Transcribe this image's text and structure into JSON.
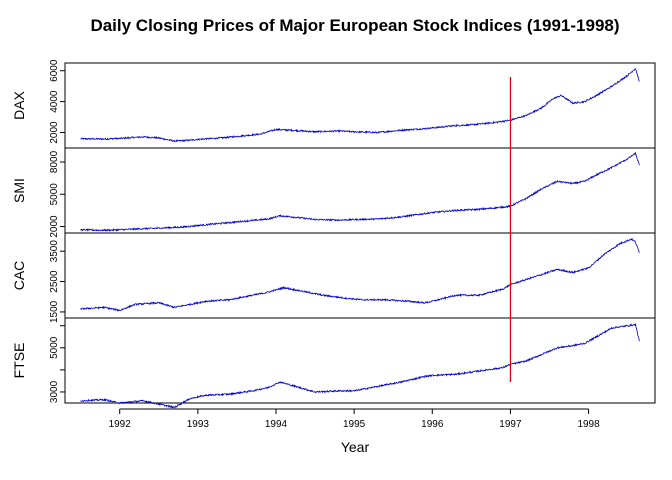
{
  "chart_data": {
    "type": "line",
    "title": "Daily Closing Prices of Major European Stock Indices (1991-1998)",
    "xlabel": "Year",
    "x_ticks": [
      1992,
      1993,
      1994,
      1995,
      1996,
      1997,
      1998
    ],
    "xlim": [
      1991.3,
      1998.85
    ],
    "series_color": "#0000cc",
    "vline": {
      "x": 1997.0,
      "color": "#dd0000"
    },
    "panels": [
      {
        "name": "DAX",
        "ylim": [
          1000,
          6500
        ],
        "yticks": [
          2000,
          4000,
          6000
        ],
        "ytick_labels": [
          "2000",
          "4000",
          "6000"
        ],
        "x": [
          1991.5,
          1991.8,
          1992.0,
          1992.3,
          1992.5,
          1992.7,
          1992.9,
          1993.0,
          1993.3,
          1993.5,
          1993.8,
          1994.0,
          1994.2,
          1994.5,
          1994.8,
          1995.0,
          1995.3,
          1995.6,
          1995.9,
          1996.0,
          1996.3,
          1996.5,
          1996.8,
          1997.0,
          1997.2,
          1997.4,
          1997.55,
          1997.65,
          1997.8,
          1997.95,
          1998.1,
          1998.3,
          1998.5,
          1998.6,
          1998.65
        ],
        "values": [
          1600,
          1580,
          1620,
          1720,
          1650,
          1450,
          1500,
          1560,
          1650,
          1750,
          1900,
          2200,
          2150,
          2050,
          2100,
          2050,
          2000,
          2150,
          2250,
          2300,
          2450,
          2500,
          2650,
          2800,
          3100,
          3600,
          4200,
          4400,
          3900,
          4000,
          4400,
          5000,
          5700,
          6150,
          5300
        ]
      },
      {
        "name": "SMI",
        "ylim": [
          1400,
          9300
        ],
        "yticks": [
          2000,
          5000,
          8000
        ],
        "ytick_labels": [
          "2000",
          "5000",
          "8000"
        ],
        "x": [
          1991.5,
          1991.8,
          1992.0,
          1992.3,
          1992.5,
          1992.8,
          1993.0,
          1993.3,
          1993.6,
          1993.9,
          1994.05,
          1994.2,
          1994.5,
          1994.8,
          1995.0,
          1995.3,
          1995.6,
          1995.9,
          1996.0,
          1996.3,
          1996.6,
          1996.9,
          1997.0,
          1997.2,
          1997.4,
          1997.6,
          1997.8,
          1997.95,
          1998.1,
          1998.3,
          1998.5,
          1998.6,
          1998.65
        ],
        "values": [
          1700,
          1650,
          1700,
          1800,
          1850,
          1950,
          2100,
          2300,
          2500,
          2700,
          3000,
          2900,
          2650,
          2600,
          2650,
          2700,
          2900,
          3200,
          3300,
          3500,
          3600,
          3800,
          3900,
          4600,
          5500,
          6200,
          6000,
          6200,
          6800,
          7500,
          8300,
          8800,
          7700
        ]
      },
      {
        "name": "CAC",
        "ylim": [
          1300,
          4100
        ],
        "yticks": [
          1500,
          2500,
          3500
        ],
        "ytick_labels": [
          "1500",
          "2500",
          "3500"
        ],
        "x": [
          1991.5,
          1991.8,
          1992.0,
          1992.2,
          1992.5,
          1992.7,
          1992.9,
          1993.1,
          1993.4,
          1993.7,
          1993.9,
          1994.1,
          1994.3,
          1994.6,
          1994.9,
          1995.1,
          1995.4,
          1995.7,
          1995.9,
          1996.0,
          1996.3,
          1996.6,
          1996.9,
          1997.0,
          1997.3,
          1997.6,
          1997.8,
          1998.0,
          1998.2,
          1998.4,
          1998.55,
          1998.6,
          1998.65
        ],
        "values": [
          1600,
          1650,
          1550,
          1750,
          1800,
          1650,
          1750,
          1850,
          1900,
          2050,
          2150,
          2300,
          2200,
          2050,
          1950,
          1900,
          1900,
          1850,
          1800,
          1850,
          2050,
          2050,
          2250,
          2400,
          2650,
          2900,
          2800,
          2950,
          3400,
          3750,
          3900,
          3800,
          3450
        ]
      },
      {
        "name": "FTSE",
        "ylim": [
          2500,
          6350
        ],
        "yticks": [
          3000,
          4000,
          5000,
          6000
        ],
        "ytick_labels": [
          "3000",
          "",
          "5000",
          ""
        ],
        "x": [
          1991.5,
          1991.8,
          1992.0,
          1992.3,
          1992.5,
          1992.7,
          1992.9,
          1993.1,
          1993.4,
          1993.7,
          1993.9,
          1994.05,
          1994.2,
          1994.5,
          1994.8,
          1995.0,
          1995.3,
          1995.6,
          1995.9,
          1996.0,
          1996.3,
          1996.6,
          1996.9,
          1997.0,
          1997.2,
          1997.4,
          1997.6,
          1997.8,
          1997.95,
          1998.1,
          1998.3,
          1998.5,
          1998.6,
          1998.65
        ],
        "values": [
          2600,
          2650,
          2500,
          2600,
          2450,
          2300,
          2700,
          2850,
          2900,
          3050,
          3200,
          3450,
          3300,
          3000,
          3050,
          3050,
          3250,
          3450,
          3700,
          3750,
          3800,
          3950,
          4100,
          4250,
          4400,
          4700,
          5000,
          5100,
          5200,
          5500,
          5900,
          6000,
          6050,
          5300
        ]
      }
    ]
  }
}
